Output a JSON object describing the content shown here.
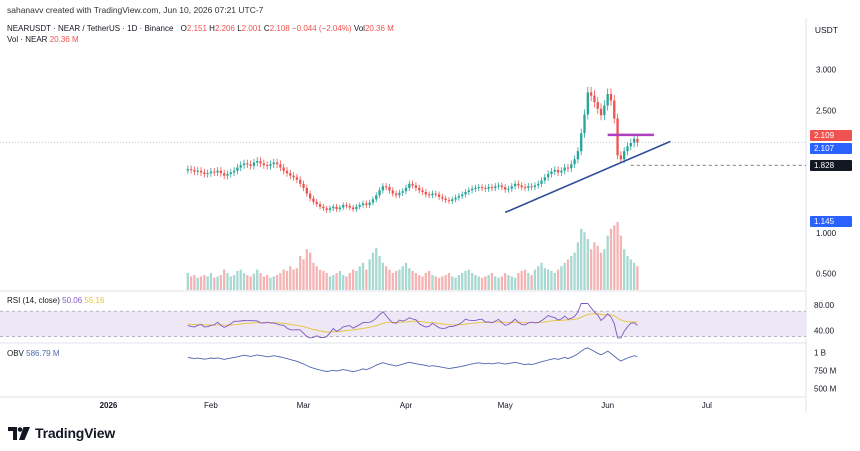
{
  "header": {
    "credit": "sahanavv created with TradingView.com, Jun 10, 2026 07:21 UTC-7"
  },
  "legend": {
    "symbol": "NEARUSDT · NEAR / TetherUS · 1D · Binance",
    "open_label": "O",
    "open": "2.151",
    "high_label": "H",
    "high": "2.206",
    "low_label": "L",
    "low": "2.001",
    "close_label": "C",
    "close": "2.108",
    "change": "−0.044 (−2.04%)",
    "vol_label": "Vol",
    "vol": "20.36 M",
    "vol_series": "Vol · NEAR",
    "vol_value": "20.36 M"
  },
  "axis": {
    "currency": "USDT",
    "price_ticks": [
      "3.000",
      "2.500",
      "1.000",
      "0.500"
    ],
    "rsi_ticks": [
      "80.00",
      "40.00"
    ],
    "obv_ticks": [
      "1 B",
      "750 M",
      "500 M"
    ],
    "time_ticks": [
      "2026",
      "Feb",
      "Mar",
      "Apr",
      "May",
      "Jun",
      "Jul"
    ]
  },
  "price_tags": [
    {
      "value": "2.109",
      "color": "#ef5350"
    },
    {
      "value": "2.107",
      "color": "#2962ff"
    },
    {
      "value": "1.828",
      "color": "#131722"
    },
    {
      "value": "1.145",
      "color": "#2962ff"
    }
  ],
  "indicators": {
    "rsi_label": "RSI (14, close)",
    "rsi_value": "50.06",
    "rsi_ma": "55.16",
    "obv_label": "OBV",
    "obv_value": "586.79 M"
  },
  "branding": {
    "logo_text": "TradingView"
  },
  "colors": {
    "up": "#26a69a",
    "down": "#ef5350",
    "trend": "#2f4f9a",
    "resistance": "#b040c0",
    "rsi": "#7e57c2",
    "rsi_ma": "#e8c33a",
    "obv": "#4f67b0"
  },
  "chart_data": {
    "type": "candlestick",
    "title": "NEARUSDT · NEAR / TetherUS · 1D · Binance",
    "ylabel": "USDT",
    "ylim": [
      0.3,
      3.3
    ],
    "x_range": [
      "2025-12-01",
      "2026-07-31"
    ],
    "candles_close": [
      1.78,
      1.77,
      1.75,
      1.76,
      1.74,
      1.72,
      1.73,
      1.75,
      1.74,
      1.76,
      1.73,
      1.7,
      1.72,
      1.74,
      1.76,
      1.8,
      1.83,
      1.85,
      1.84,
      1.82,
      1.86,
      1.88,
      1.85,
      1.83,
      1.82,
      1.84,
      1.86,
      1.84,
      1.8,
      1.76,
      1.73,
      1.7,
      1.68,
      1.65,
      1.6,
      1.55,
      1.48,
      1.42,
      1.38,
      1.35,
      1.32,
      1.3,
      1.28,
      1.3,
      1.32,
      1.29,
      1.31,
      1.34,
      1.33,
      1.31,
      1.29,
      1.32,
      1.34,
      1.36,
      1.34,
      1.37,
      1.41,
      1.46,
      1.52,
      1.57,
      1.56,
      1.52,
      1.48,
      1.46,
      1.49,
      1.51,
      1.55,
      1.6,
      1.58,
      1.55,
      1.52,
      1.5,
      1.47,
      1.46,
      1.48,
      1.47,
      1.44,
      1.42,
      1.4,
      1.39,
      1.41,
      1.43,
      1.45,
      1.47,
      1.5,
      1.52,
      1.54,
      1.55,
      1.56,
      1.55,
      1.54,
      1.56,
      1.55,
      1.57,
      1.58,
      1.56,
      1.53,
      1.54,
      1.57,
      1.6,
      1.58,
      1.56,
      1.55,
      1.57,
      1.56,
      1.58,
      1.6,
      1.64,
      1.68,
      1.72,
      1.75,
      1.77,
      1.74,
      1.76,
      1.8,
      1.79,
      1.84,
      1.9,
      2.0,
      2.22,
      2.45,
      2.72,
      2.68,
      2.6,
      2.52,
      2.44,
      2.56,
      2.7,
      2.62,
      2.4,
      1.95,
      1.9,
      2.0,
      2.06,
      2.1,
      2.15,
      2.108
    ],
    "volume_relative": [
      0.25,
      0.2,
      0.22,
      0.18,
      0.2,
      0.22,
      0.2,
      0.25,
      0.18,
      0.2,
      0.22,
      0.3,
      0.25,
      0.2,
      0.22,
      0.28,
      0.3,
      0.25,
      0.22,
      0.2,
      0.24,
      0.3,
      0.25,
      0.2,
      0.22,
      0.18,
      0.2,
      0.22,
      0.25,
      0.3,
      0.28,
      0.35,
      0.3,
      0.32,
      0.5,
      0.45,
      0.6,
      0.55,
      0.4,
      0.35,
      0.3,
      0.28,
      0.25,
      0.2,
      0.22,
      0.25,
      0.28,
      0.22,
      0.2,
      0.25,
      0.3,
      0.28,
      0.35,
      0.4,
      0.3,
      0.45,
      0.55,
      0.62,
      0.5,
      0.4,
      0.35,
      0.3,
      0.25,
      0.28,
      0.3,
      0.35,
      0.4,
      0.32,
      0.28,
      0.25,
      0.22,
      0.2,
      0.25,
      0.28,
      0.22,
      0.2,
      0.18,
      0.2,
      0.22,
      0.25,
      0.2,
      0.18,
      0.22,
      0.25,
      0.28,
      0.3,
      0.25,
      0.22,
      0.2,
      0.18,
      0.2,
      0.22,
      0.25,
      0.2,
      0.18,
      0.2,
      0.25,
      0.22,
      0.2,
      0.18,
      0.25,
      0.28,
      0.3,
      0.25,
      0.22,
      0.3,
      0.35,
      0.4,
      0.32,
      0.3,
      0.28,
      0.25,
      0.3,
      0.35,
      0.4,
      0.45,
      0.5,
      0.55,
      0.7,
      0.9,
      0.85,
      0.75,
      0.6,
      0.7,
      0.65,
      0.55,
      0.6,
      0.8,
      0.9,
      0.95,
      1.0,
      0.8,
      0.6,
      0.5,
      0.45,
      0.4,
      0.35
    ],
    "horizontal_levels": [
      2.109,
      1.828
    ],
    "trendline": {
      "from": [
        "2026-05-01",
        1.25
      ],
      "to": [
        "2026-06-20",
        2.12
      ]
    },
    "resistance": {
      "value": 2.2,
      "from": "2026-06-01",
      "to": "2026-06-15"
    }
  }
}
